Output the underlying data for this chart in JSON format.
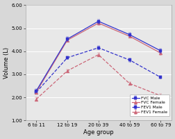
{
  "x_labels": [
    "6 to 11",
    "12 to 19",
    "20 to 39",
    "40 to 59",
    "60 to 79"
  ],
  "x": [
    0,
    1,
    2,
    3,
    4
  ],
  "FVC_Male": [
    2.28,
    4.53,
    5.3,
    4.72,
    4.02
  ],
  "FVC_Female": [
    2.22,
    4.48,
    5.22,
    4.65,
    3.92
  ],
  "FEV1_Male": [
    2.22,
    3.72,
    4.15,
    3.62,
    2.87
  ],
  "FEV1_Female": [
    1.92,
    3.15,
    3.85,
    2.6,
    2.07
  ],
  "FVC_Male_err": [
    0.08,
    0.08,
    0.09,
    0.08,
    0.08
  ],
  "FVC_Female_err": [
    0.07,
    0.07,
    0.08,
    0.07,
    0.07
  ],
  "FEV1_Male_err": [
    0.07,
    0.07,
    0.08,
    0.08,
    0.07
  ],
  "FEV1_Female_err": [
    0.07,
    0.07,
    0.07,
    0.07,
    0.07
  ],
  "color_blue": "#3333cc",
  "color_pink": "#cc6677",
  "ylabel": "Volume (L)",
  "xlabel": "Age group",
  "ylim": [
    1.0,
    6.0
  ],
  "ytick_vals": [
    1.0,
    2.0,
    3.0,
    4.0,
    5.0,
    6.0
  ],
  "ytick_labels": [
    "1.00",
    "2.00",
    "3.00",
    "4.00",
    "5.00",
    "6.00"
  ],
  "legend_labels": [
    "FVC Male",
    "FVC Female",
    "FEV1 Male",
    "FEV1 Female"
  ],
  "bg_color": "#e8e8e8",
  "fig_facecolor": "#d8d8d8"
}
